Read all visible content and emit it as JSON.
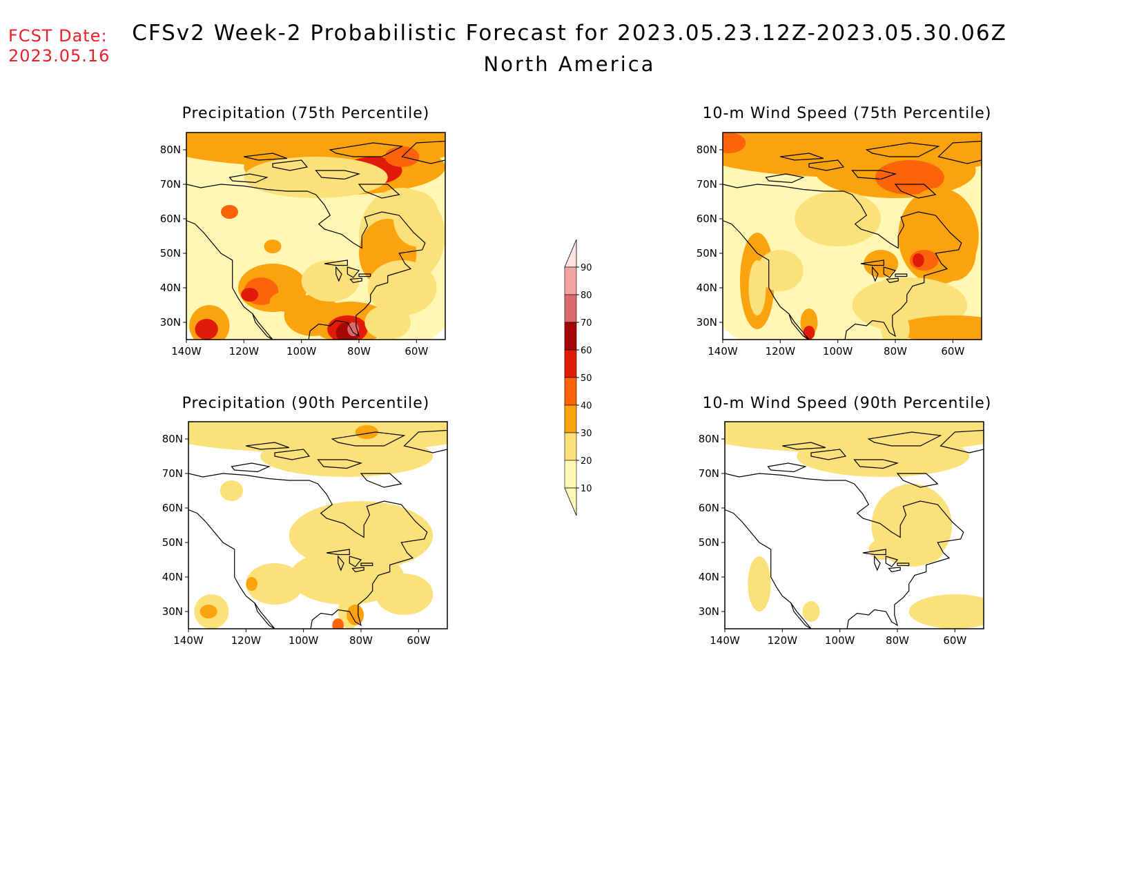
{
  "fcst_date": {
    "label": "FCST Date:",
    "value": "2023.05.16"
  },
  "title": {
    "line1": "CFSv2 Week-2 Probabilistic Forecast for 2023.05.23.12Z-2023.05.30.06Z",
    "line2": "North America"
  },
  "axes": {
    "lon_labels": [
      "140W",
      "120W",
      "100W",
      "80W",
      "60W"
    ],
    "lat_labels": [
      "80N",
      "70N",
      "60N",
      "50N",
      "40N",
      "30N"
    ],
    "lon_range": [
      -140,
      -50
    ],
    "lat_range": [
      25,
      85
    ]
  },
  "panels": [
    {
      "id": "precip-75",
      "title": "Precipitation (75th Percentile)"
    },
    {
      "id": "wind-75",
      "title": "10-m Wind Speed (75th Percentile)"
    },
    {
      "id": "precip-90",
      "title": "Precipitation (90th Percentile)"
    },
    {
      "id": "wind-90",
      "title": "10-m Wind Speed (90th Percentile)"
    }
  ],
  "colorbar": {
    "levels": [
      "10",
      "20",
      "30",
      "40",
      "50",
      "60",
      "70",
      "80",
      "90"
    ],
    "colors": [
      "#fff7b3",
      "#fbe17a",
      "#fba20f",
      "#fc640b",
      "#e21b08",
      "#a50606",
      "#dd6a6a",
      "#f2a3a3",
      "#fde3e3"
    ]
  },
  "colors": {
    "fcst": "#e8202a",
    "coast": "#000000"
  }
}
